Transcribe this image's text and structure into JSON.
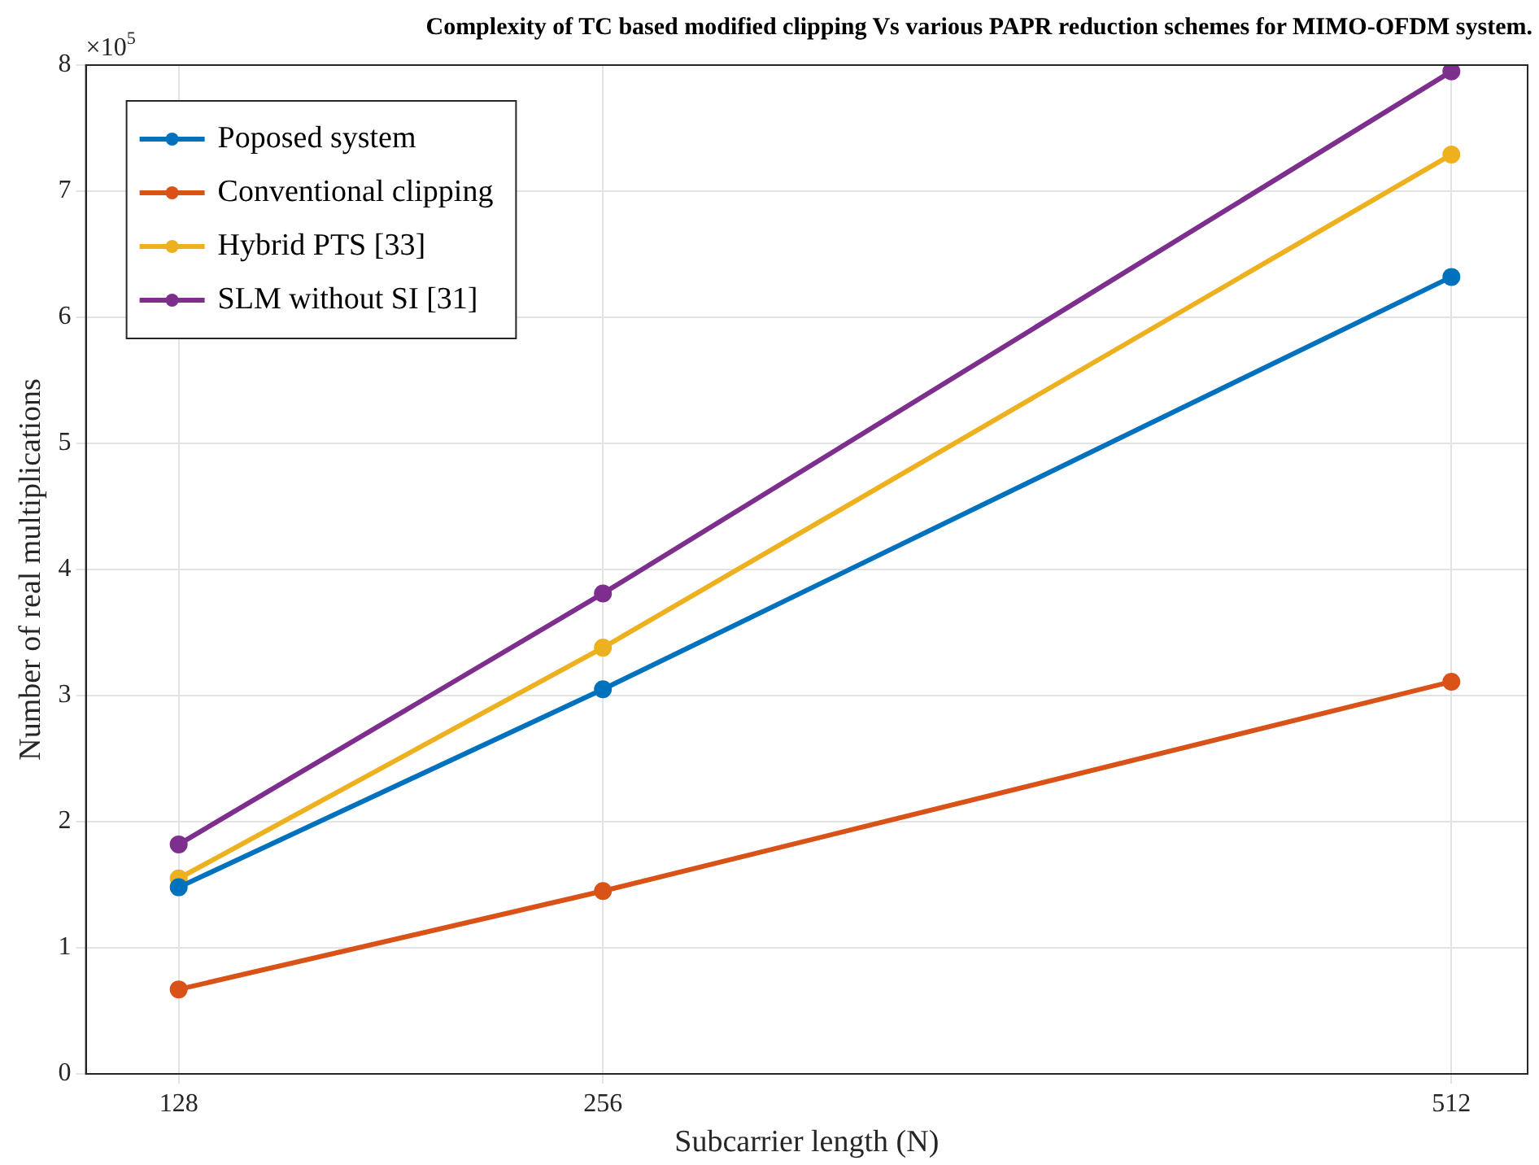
{
  "chart_data": {
    "type": "line",
    "title": "Complexity of TC based modified clipping Vs various PAPR reduction schemes for MIMO-OFDM system.",
    "xlabel": "Subcarrier length (N)",
    "ylabel": "Number of real multiplications",
    "annotations": [
      "×10$^{5}$"
    ],
    "x": [
      128,
      256,
      512
    ],
    "series": [
      {
        "name": "Poposed system",
        "color": "#0072bd",
        "values": [
          1.48,
          3.05,
          6.32
        ]
      },
      {
        "name": "Conventional clipping",
        "color": "#d95319",
        "values": [
          0.67,
          1.45,
          3.11
        ]
      },
      {
        "name": "Hybrid PTS [33]",
        "color": "#edb120",
        "values": [
          1.55,
          3.38,
          7.29
        ]
      },
      {
        "name": "SLM without SI [31]",
        "color": "#7e2f8e",
        "values": [
          1.82,
          3.81,
          7.95
        ]
      }
    ],
    "xlim": [
      100,
      535
    ],
    "xticks": [
      128,
      256,
      512
    ],
    "ylim": [
      0,
      8
    ],
    "yticks": [
      0,
      1,
      2,
      3,
      4,
      5,
      6,
      7,
      8
    ],
    "grid": true,
    "legend": "top left",
    "marker": "circle",
    "line_style": "solid"
  }
}
